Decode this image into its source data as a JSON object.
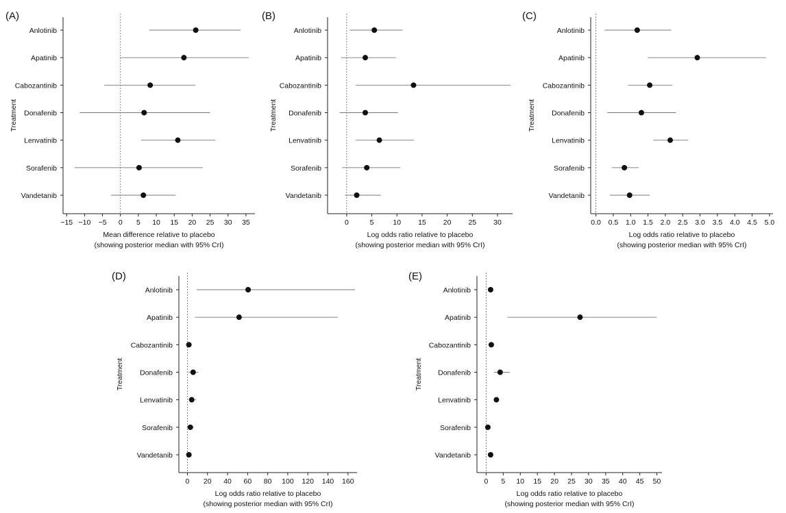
{
  "chart_data": [
    {
      "type": "forest",
      "panel_label": "(A)",
      "ylabel": "Treatment",
      "xlabel": "Mean difference relative to placebo",
      "xlabel2": "(showing posterior median with 95% CrI)",
      "reference_line": 0,
      "xlim": [
        -16,
        37.5
      ],
      "xticks": [
        -15,
        -10,
        -5,
        0,
        5,
        10,
        15,
        20,
        25,
        30,
        35
      ],
      "tick_labels": [
        "−15",
        "−10",
        "−5",
        "0",
        "5",
        "10",
        "15",
        "20",
        "25",
        "30",
        "35"
      ],
      "categories": [
        "Anlotinib",
        "Apatinib",
        "Cabozantinib",
        "Donafenib",
        "Lenvatinib",
        "Sorafenib",
        "Vandetanib"
      ],
      "median": [
        21.0,
        17.7,
        8.3,
        6.6,
        16.0,
        5.2,
        6.4
      ],
      "lower": [
        8.0,
        -0.2,
        -4.5,
        -11.3,
        5.8,
        -12.8,
        -2.6
      ],
      "upper": [
        33.5,
        35.8,
        20.9,
        24.9,
        26.5,
        23.0,
        15.4
      ]
    },
    {
      "type": "forest",
      "panel_label": "(B)",
      "ylabel": "Treatment",
      "xlabel": "Log odds ratio relative to placebo",
      "xlabel2": "(showing posterior median with 95% CrI)",
      "reference_line": 0,
      "xlim": [
        -3.8,
        33
      ],
      "xticks": [
        0,
        5,
        10,
        15,
        20,
        25,
        30
      ],
      "tick_labels": [
        "0",
        "5",
        "10",
        "15",
        "20",
        "25",
        "30"
      ],
      "categories": [
        "Anlotinib",
        "Apatinib",
        "Cabozantinib",
        "Donafenib",
        "Lenvatinib",
        "Sorafenib",
        "Vandetanib"
      ],
      "median": [
        5.5,
        3.7,
        13.3,
        3.7,
        6.5,
        4.0,
        2.0
      ],
      "lower": [
        0.6,
        -1.1,
        1.8,
        -1.4,
        1.8,
        -0.9,
        -0.3
      ],
      "upper": [
        11.1,
        9.8,
        32.6,
        10.2,
        13.4,
        10.7,
        6.8
      ]
    },
    {
      "type": "forest",
      "panel_label": "(C)",
      "ylabel": "Treatment",
      "xlabel": "Log odds ratio relative to placebo",
      "xlabel2": "(showing posterior median with 95% CrI)",
      "reference_line": 0,
      "xlim": [
        -0.15,
        5.1
      ],
      "xticks": [
        0.0,
        0.5,
        1.0,
        1.5,
        2.0,
        2.5,
        3.0,
        3.5,
        4.0,
        4.5,
        5.0
      ],
      "tick_labels": [
        "0.0",
        "0.5",
        "1.0",
        "1.5",
        "2.0",
        "2.5",
        "3.0",
        "3.5",
        "4.0",
        "4.5",
        "5.0"
      ],
      "categories": [
        "Anlotinib",
        "Apatinib",
        "Cabozantinib",
        "Donafenib",
        "Lenvatinib",
        "Sorafenib",
        "Vandetanib"
      ],
      "median": [
        1.19,
        2.92,
        1.55,
        1.31,
        2.14,
        0.82,
        0.97
      ],
      "lower": [
        0.25,
        1.5,
        0.93,
        0.33,
        1.65,
        0.46,
        0.4
      ],
      "upper": [
        2.17,
        4.9,
        2.2,
        2.3,
        2.65,
        1.23,
        1.55
      ]
    },
    {
      "type": "forest",
      "panel_label": "(D)",
      "ylabel": "Treatment",
      "xlabel": "Log odds ratio relative to placebo",
      "xlabel2": "(showing posterior median with 95% CrI)",
      "reference_line": 0,
      "xlim": [
        -8.5,
        169
      ],
      "xticks": [
        0,
        20,
        40,
        60,
        80,
        100,
        120,
        140,
        160
      ],
      "tick_labels": [
        "0",
        "20",
        "40",
        "60",
        "80",
        "100",
        "120",
        "140",
        "160"
      ],
      "categories": [
        "Anlotinib",
        "Apatinib",
        "Cabozantinib",
        "Donafenib",
        "Lenvatinib",
        "Sorafenib",
        "Vandetanib"
      ],
      "median": [
        60.5,
        51.5,
        1.5,
        5.7,
        4.3,
        2.9,
        1.5
      ],
      "lower": [
        9.2,
        7.5,
        0.5,
        1.0,
        1.2,
        0.4,
        0.4
      ],
      "upper": [
        167,
        150,
        2.5,
        10.8,
        8.7,
        6.2,
        3.3
      ]
    },
    {
      "type": "forest",
      "panel_label": "(E)",
      "ylabel": "Treatment",
      "xlabel": "Log odds ratio relative to placebo",
      "xlabel2": "(showing posterior median with 95% CrI)",
      "reference_line": 0,
      "xlim": [
        -2.7,
        51.5
      ],
      "xticks": [
        0,
        5,
        10,
        15,
        20,
        25,
        30,
        35,
        40,
        45,
        50
      ],
      "tick_labels": [
        "0",
        "5",
        "10",
        "15",
        "20",
        "25",
        "30",
        "35",
        "40",
        "45",
        "50"
      ],
      "categories": [
        "Anlotinib",
        "Apatinib",
        "Cabozantinib",
        "Donafenib",
        "Lenvatinib",
        "Sorafenib",
        "Vandetanib"
      ],
      "median": [
        1.3,
        27.5,
        1.5,
        4.1,
        3.0,
        0.5,
        1.3
      ],
      "lower": [
        0.8,
        6.2,
        0.9,
        2.3,
        2.5,
        0.2,
        0.7
      ],
      "upper": [
        1.9,
        50.0,
        2.1,
        6.9,
        3.5,
        0.9,
        2.0
      ]
    }
  ]
}
